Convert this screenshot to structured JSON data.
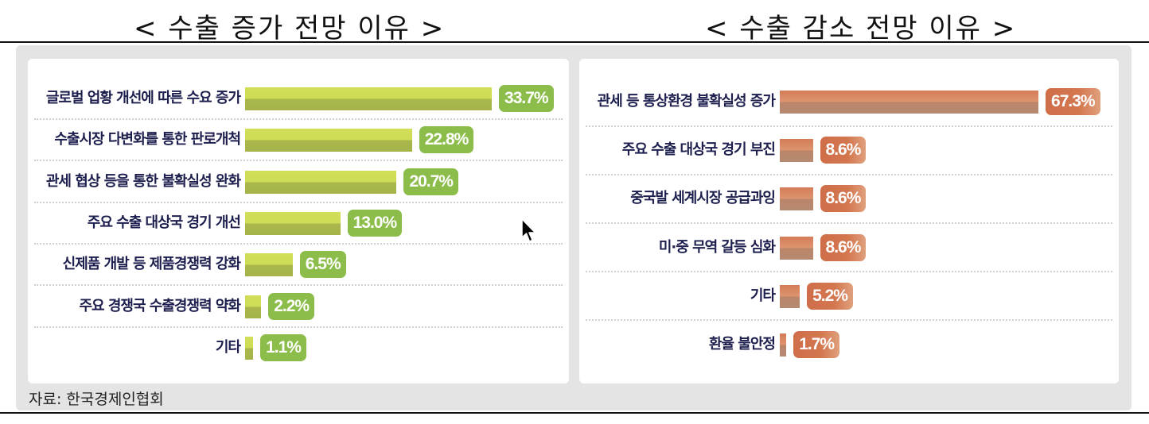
{
  "titles": {
    "left": "< 수출 증가 전망 이유 >",
    "right": "< 수출 감소 전망 이유 >"
  },
  "source": "자료: 한국경제인협회",
  "colors": {
    "increase_bar": "#cddb55",
    "increase_badge": "#8cbd4a",
    "decrease_bar": "#d47c57",
    "decrease_badge": "#cf6e49",
    "label_text": "#1d1f4e"
  },
  "increase": {
    "items": [
      {
        "label": "글로벌 업황 개선에 따른 수요 증가",
        "value": 33.7,
        "display": "33.7%"
      },
      {
        "label": "수출시장 다변화를 통한 판로개척",
        "value": 22.8,
        "display": "22.8%"
      },
      {
        "label": "관세 협상 등을 통한 불확실성 완화",
        "value": 20.7,
        "display": "20.7%"
      },
      {
        "label": "주요 수출 대상국 경기 개선",
        "value": 13.0,
        "display": "13.0%"
      },
      {
        "label": "신제품 개발 등 제품경쟁력 강화",
        "value": 6.5,
        "display": "6.5%"
      },
      {
        "label": "주요 경쟁국 수출경쟁력 약화",
        "value": 2.2,
        "display": "2.2%"
      },
      {
        "label": "기타",
        "value": 1.1,
        "display": "1.1%"
      }
    ]
  },
  "decrease": {
    "items": [
      {
        "label": "관세 등 통상환경 불확실성 증가",
        "value": 67.3,
        "display": "67.3%"
      },
      {
        "label": "주요 수출 대상국 경기 부진",
        "value": 8.6,
        "display": "8.6%"
      },
      {
        "label": "중국발 세계시장 공급과잉",
        "value": 8.6,
        "display": "8.6%"
      },
      {
        "label": "미·중 무역 갈등 심화",
        "value": 8.6,
        "display": "8.6%"
      },
      {
        "label": "기타",
        "value": 5.2,
        "display": "5.2%"
      },
      {
        "label": "환율 불안정",
        "value": 1.7,
        "display": "1.7%"
      }
    ]
  },
  "chart_data": [
    {
      "type": "bar",
      "orientation": "horizontal",
      "title": "< 수출 증가 전망 이유 >",
      "categories": [
        "글로벌 업황 개선에 따른 수요 증가",
        "수출시장 다변화를 통한 판로개척",
        "관세 협상 등을 통한 불확실성 완화",
        "주요 수출 대상국 경기 개선",
        "신제품 개발 등 제품경쟁력 강화",
        "주요 경쟁국 수출경쟁력 약화",
        "기타"
      ],
      "values": [
        33.7,
        22.8,
        20.7,
        13.0,
        6.5,
        2.2,
        1.1
      ],
      "unit": "%",
      "xlabel": "",
      "ylabel": "",
      "grid": false,
      "data_labels": true,
      "color": "#cddb55"
    },
    {
      "type": "bar",
      "orientation": "horizontal",
      "title": "< 수출 감소 전망 이유 >",
      "categories": [
        "관세 등 통상환경 불확실성 증가",
        "주요 수출 대상국 경기 부진",
        "중국발 세계시장 공급과잉",
        "미·중 무역 갈등 심화",
        "기타",
        "환율 불안정"
      ],
      "values": [
        67.3,
        8.6,
        8.6,
        8.6,
        5.2,
        1.7
      ],
      "unit": "%",
      "xlabel": "",
      "ylabel": "",
      "grid": false,
      "data_labels": true,
      "color": "#d47c57"
    }
  ]
}
